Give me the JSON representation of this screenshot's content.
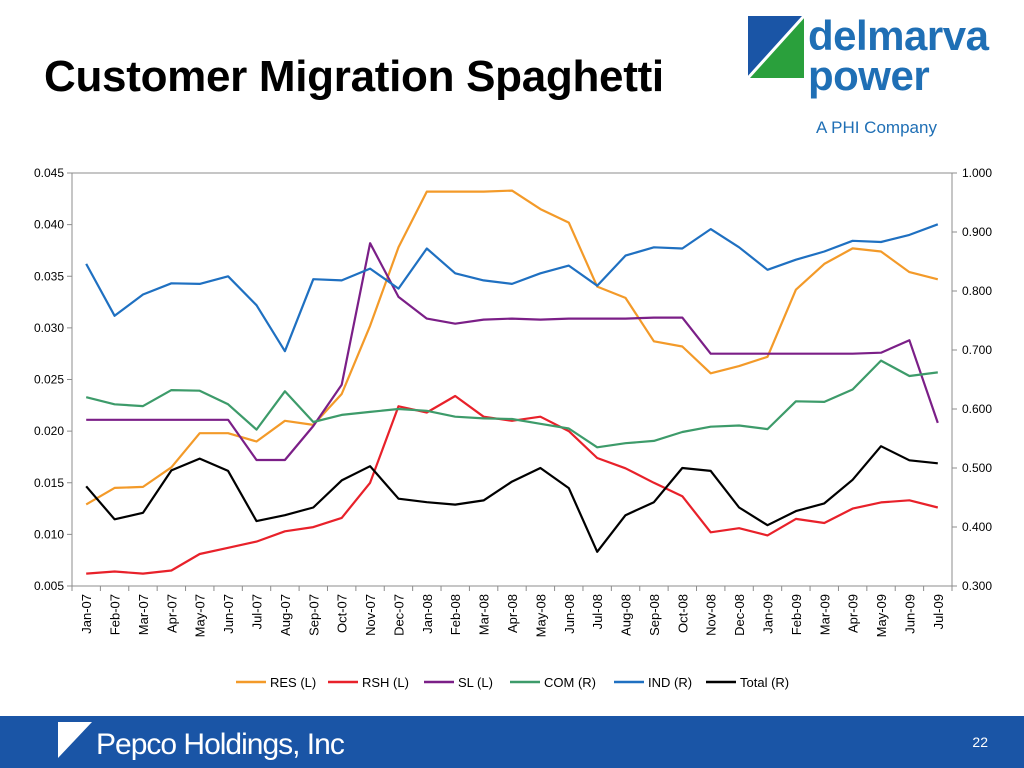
{
  "slide": {
    "title": "Customer Migration Spaghetti",
    "page_number": "22"
  },
  "logo": {
    "line1": "delmarva",
    "line2": "power",
    "subtitle": "A PHI Company"
  },
  "footer": {
    "company": "Pepco Holdings, Inc"
  },
  "colors": {
    "RES (L)": "#f39a29",
    "RSH (L)": "#e8212a",
    "SL (L)": "#7b1f87",
    "COM (R)": "#3d9b6a",
    "IND (R)": "#1f70c1",
    "Total (R)": "#000000",
    "brand_blue": "#1a55a6",
    "brand_green": "#2aa03c"
  },
  "chart_data": {
    "type": "line",
    "categories": [
      "Jan-07",
      "Feb-07",
      "Mar-07",
      "Apr-07",
      "May-07",
      "Jun-07",
      "Jul-07",
      "Aug-07",
      "Sep-07",
      "Oct-07",
      "Nov-07",
      "Dec-07",
      "Jan-08",
      "Feb-08",
      "Mar-08",
      "Apr-08",
      "May-08",
      "Jun-08",
      "Jul-08",
      "Aug-08",
      "Sep-08",
      "Oct-08",
      "Nov-08",
      "Dec-08",
      "Jan-09",
      "Feb-09",
      "Mar-09",
      "Apr-09",
      "May-09",
      "Jun-09",
      "Jul-09"
    ],
    "left_axis": {
      "min": 0.005,
      "max": 0.045,
      "ticks": [
        "0.005",
        "0.010",
        "0.015",
        "0.020",
        "0.025",
        "0.030",
        "0.035",
        "0.040",
        "0.045"
      ]
    },
    "right_axis": {
      "min": 0.3,
      "max": 1.0,
      "ticks": [
        "0.300",
        "0.400",
        "0.500",
        "0.600",
        "0.700",
        "0.800",
        "0.900",
        "1.000"
      ]
    },
    "legend_position": "bottom",
    "grid": false,
    "series": [
      {
        "name": "RES (L)",
        "axis": "left",
        "values": [
          0.0129,
          0.0145,
          0.0146,
          0.0165,
          0.0198,
          0.0198,
          0.019,
          0.021,
          0.0206,
          0.0236,
          0.0302,
          0.0378,
          0.0432,
          0.0432,
          0.0432,
          0.0433,
          0.0415,
          0.0402,
          0.034,
          0.0329,
          0.0287,
          0.0282,
          0.0256,
          0.0263,
          0.0272,
          0.0337,
          0.0362,
          0.0377,
          0.0374,
          0.0354,
          0.0347
        ]
      },
      {
        "name": "RSH (L)",
        "axis": "left",
        "values": [
          0.0062,
          0.0064,
          0.0062,
          0.0065,
          0.0081,
          0.0087,
          0.0093,
          0.0103,
          0.0107,
          0.0116,
          0.015,
          0.0224,
          0.0218,
          0.0234,
          0.0214,
          0.021,
          0.0214,
          0.02,
          0.0174,
          0.0164,
          0.015,
          0.0137,
          0.0102,
          0.0106,
          0.0099,
          0.0115,
          0.0111,
          0.0125,
          0.0131,
          0.0133,
          0.0126
        ]
      },
      {
        "name": "SL (L)",
        "axis": "left",
        "values": [
          0.0211,
          0.0211,
          0.0211,
          0.0211,
          0.0211,
          0.0211,
          0.0172,
          0.0172,
          0.0205,
          0.0245,
          0.0382,
          0.033,
          0.0309,
          0.0304,
          0.0308,
          0.0309,
          0.0308,
          0.0309,
          0.0309,
          0.0309,
          0.031,
          0.031,
          0.0275,
          0.0275,
          0.0275,
          0.0275,
          0.0275,
          0.0275,
          0.0276,
          0.0288,
          0.0208
        ]
      },
      {
        "name": "COM (R)",
        "axis": "right",
        "values": [
          0.62,
          0.608,
          0.605,
          0.632,
          0.631,
          0.608,
          0.565,
          0.63,
          0.578,
          0.59,
          0.595,
          0.6,
          0.597,
          0.587,
          0.584,
          0.583,
          0.575,
          0.567,
          0.535,
          0.542,
          0.546,
          0.561,
          0.57,
          0.572,
          0.566,
          0.613,
          0.612,
          0.633,
          0.682,
          0.656,
          0.662
        ]
      },
      {
        "name": "IND (R)",
        "axis": "right",
        "values": [
          0.846,
          0.758,
          0.794,
          0.813,
          0.812,
          0.825,
          0.776,
          0.698,
          0.82,
          0.818,
          0.838,
          0.804,
          0.872,
          0.83,
          0.818,
          0.812,
          0.83,
          0.843,
          0.809,
          0.86,
          0.874,
          0.872,
          0.905,
          0.874,
          0.836,
          0.853,
          0.867,
          0.885,
          0.883,
          0.895,
          0.913
        ]
      },
      {
        "name": "Total (R)",
        "axis": "right",
        "values": [
          0.469,
          0.413,
          0.424,
          0.496,
          0.516,
          0.495,
          0.41,
          0.42,
          0.433,
          0.479,
          0.503,
          0.448,
          0.442,
          0.438,
          0.445,
          0.477,
          0.5,
          0.466,
          0.358,
          0.42,
          0.442,
          0.5,
          0.495,
          0.433,
          0.403,
          0.427,
          0.44,
          0.48,
          0.537,
          0.513,
          0.508
        ]
      }
    ]
  }
}
